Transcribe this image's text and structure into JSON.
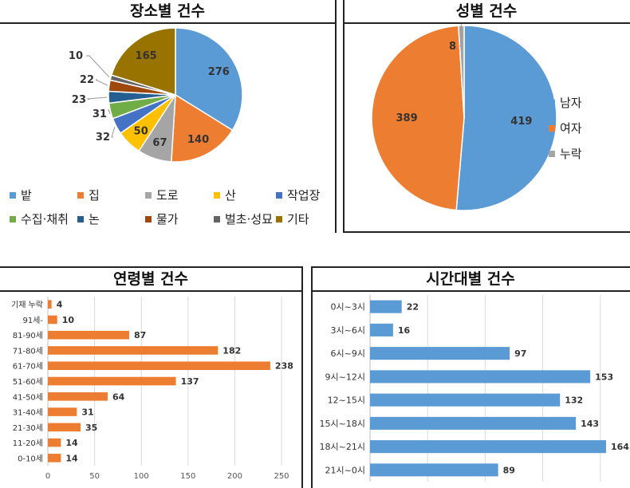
{
  "charts": {
    "place": {
      "title": "장소별 건수",
      "legend": [
        "밭",
        "집",
        "도로",
        "산",
        "작업장",
        "수집·채취",
        "논",
        "물가",
        "벌초·성묘",
        "기타"
      ]
    },
    "sex": {
      "title": "성별 건수",
      "legend": [
        "남자",
        "여자",
        "누락"
      ]
    },
    "age": {
      "title": "연령별 건수"
    },
    "time": {
      "title": "시간대별 건수"
    }
  },
  "chart_data": [
    {
      "type": "pie",
      "title": "장소별 건수",
      "categories": [
        "밭",
        "집",
        "도로",
        "산",
        "작업장",
        "수집·채취",
        "논",
        "물가",
        "벌초·성묘",
        "기타"
      ],
      "values": [
        276,
        140,
        67,
        50,
        32,
        31,
        23,
        22,
        10,
        165
      ],
      "colors": [
        "#5B9BD5",
        "#ED7D31",
        "#A5A5A5",
        "#FFC000",
        "#4472C4",
        "#70AD47",
        "#255E91",
        "#9E480E",
        "#636363",
        "#997300"
      ],
      "legend": "bottom"
    },
    {
      "type": "pie",
      "title": "성별 건수",
      "categories": [
        "남자",
        "여자",
        "누락"
      ],
      "values": [
        419,
        389,
        8
      ],
      "colors": [
        "#5B9BD5",
        "#ED7D31",
        "#A5A5A5"
      ],
      "legend": "right"
    },
    {
      "type": "bar",
      "orientation": "horizontal",
      "title": "연령별 건수",
      "categories": [
        "기재 누락",
        "91세-",
        "81-90세",
        "71-80세",
        "61-70세",
        "51-60세",
        "41-50세",
        "31-40세",
        "21-30세",
        "11-20세",
        "0-10세"
      ],
      "values": [
        4,
        10,
        87,
        182,
        238,
        137,
        64,
        31,
        35,
        14,
        14
      ],
      "xlim": [
        0,
        250
      ],
      "xticks": [
        0,
        50,
        100,
        150,
        200,
        250
      ],
      "color": "#ED7D31",
      "grid": true
    },
    {
      "type": "bar",
      "orientation": "horizontal",
      "title": "시간대별 건수",
      "categories": [
        "0시~3시",
        "3시~6시",
        "6시~9시",
        "9시~12시",
        "12~15시",
        "15시~18시",
        "18시~21시",
        "21시~0시"
      ],
      "values": [
        22,
        16,
        97,
        153,
        132,
        143,
        164,
        89
      ],
      "xlim": [
        0,
        164
      ],
      "color": "#5B9BD5",
      "grid": true
    }
  ]
}
